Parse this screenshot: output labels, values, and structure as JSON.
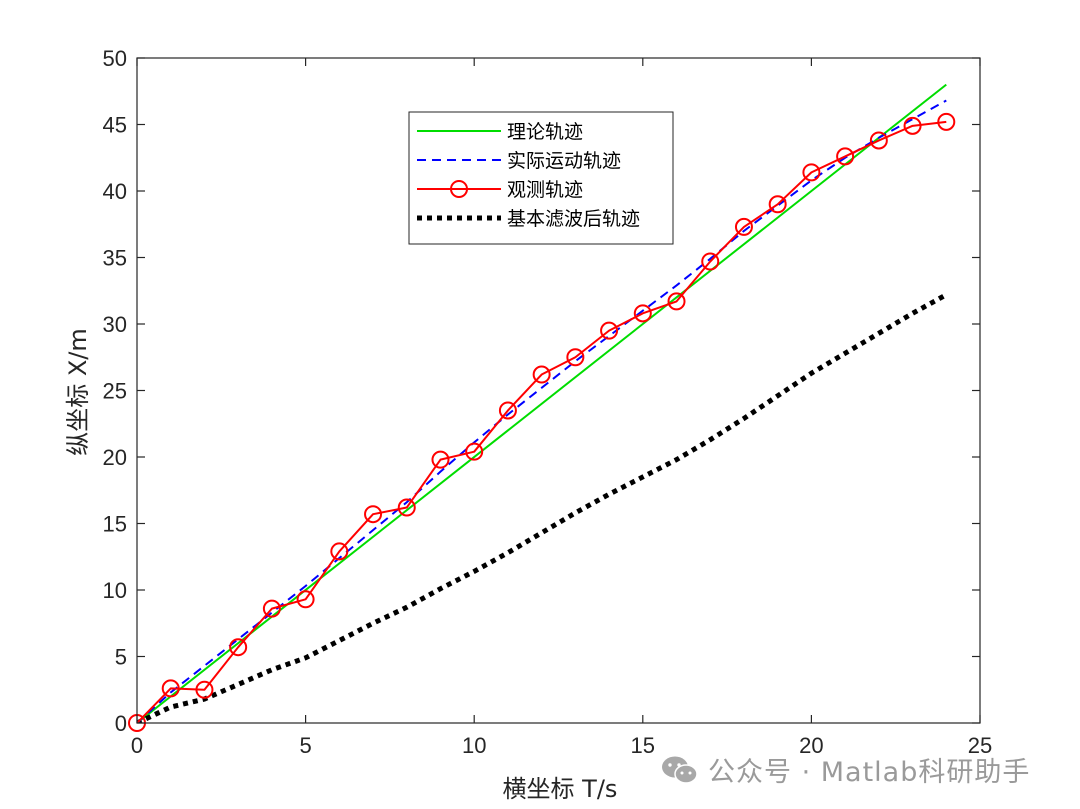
{
  "chart_data": {
    "type": "line",
    "title": "",
    "xlabel": "横坐标 T/s",
    "ylabel": "纵坐标 X/m",
    "xlim": [
      0,
      25
    ],
    "ylim": [
      0,
      50
    ],
    "xticks": [
      0,
      5,
      10,
      15,
      20,
      25
    ],
    "yticks": [
      0,
      5,
      10,
      15,
      20,
      25,
      30,
      35,
      40,
      45,
      50
    ],
    "grid": false,
    "legend_position": "upper-center-inside",
    "series": [
      {
        "name": "理论轨迹",
        "color": "#00dd00",
        "style": "solid",
        "x": [
          0,
          24
        ],
        "values": [
          0,
          48.0
        ]
      },
      {
        "name": "实际运动轨迹",
        "color": "#0000ff",
        "style": "dashed",
        "x": [
          0,
          1,
          2,
          3,
          4,
          5,
          6,
          7,
          8,
          9,
          10,
          11,
          12,
          13,
          14,
          15,
          16,
          17,
          18,
          19,
          20,
          21,
          22,
          23,
          24
        ],
        "values": [
          0,
          2.3,
          4.3,
          6.3,
          8.3,
          10.3,
          12.4,
          14.5,
          16.6,
          18.9,
          21.1,
          23.2,
          25.2,
          27.2,
          29.1,
          31.0,
          32.9,
          34.9,
          37.0,
          38.9,
          40.8,
          42.5,
          44.0,
          45.4,
          46.8
        ]
      },
      {
        "name": "观测轨迹",
        "color": "#ff0000",
        "style": "solid-circle-markers",
        "x": [
          0,
          1,
          2,
          3,
          4,
          5,
          6,
          7,
          8,
          9,
          10,
          11,
          12,
          13,
          14,
          15,
          16,
          17,
          18,
          19,
          20,
          21,
          22,
          23,
          24
        ],
        "values": [
          0,
          2.6,
          2.5,
          5.7,
          8.6,
          9.3,
          12.9,
          15.7,
          16.2,
          19.8,
          20.4,
          23.5,
          26.2,
          27.5,
          29.5,
          30.8,
          31.7,
          34.7,
          37.3,
          39.0,
          41.4,
          42.6,
          43.8,
          44.9,
          45.2
        ]
      },
      {
        "name": "基本滤波后轨迹",
        "color": "#000000",
        "style": "dotted-thick",
        "x": [
          0,
          1,
          2,
          3,
          4,
          5,
          6,
          7,
          8,
          9,
          10,
          11,
          12,
          13,
          14,
          15,
          16,
          17,
          18,
          19,
          20,
          21,
          22,
          23,
          24
        ],
        "values": [
          0,
          1.2,
          1.8,
          2.9,
          4.0,
          4.9,
          6.2,
          7.5,
          8.7,
          10.1,
          11.4,
          12.8,
          14.3,
          15.8,
          17.2,
          18.5,
          19.8,
          21.3,
          22.9,
          24.6,
          26.3,
          27.8,
          29.3,
          30.8,
          32.2
        ]
      }
    ]
  },
  "watermark": {
    "text": "公众号 · Matlab科研助手",
    "icon": "wechat-icon"
  }
}
